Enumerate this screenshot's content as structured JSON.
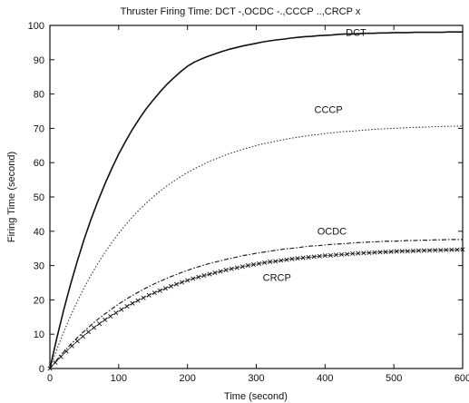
{
  "chart_data": {
    "type": "line",
    "title": "Thruster Firing Time: DCT -,OCDC -.,CCCP ..,CRCP x",
    "xlabel": "Time (second)",
    "ylabel": "Firing Time (second)",
    "xlim": [
      0,
      600
    ],
    "ylim": [
      0,
      100
    ],
    "xticks": [
      "0",
      "100",
      "200",
      "300",
      "400",
      "500",
      "600"
    ],
    "yticks": [
      "0",
      "10",
      "20",
      "30",
      "40",
      "50",
      "60",
      "70",
      "80",
      "90",
      "100"
    ],
    "grid": false,
    "x": [
      0,
      10,
      20,
      30,
      40,
      50,
      60,
      70,
      80,
      90,
      100,
      110,
      120,
      130,
      140,
      150,
      160,
      170,
      180,
      190,
      200,
      210,
      220,
      230,
      240,
      250,
      260,
      270,
      280,
      290,
      300,
      310,
      320,
      330,
      340,
      350,
      360,
      370,
      380,
      390,
      400,
      410,
      420,
      430,
      440,
      450,
      460,
      470,
      480,
      490,
      500,
      510,
      520,
      530,
      540,
      550,
      560,
      570,
      580,
      590,
      600
    ],
    "series": [
      {
        "name": "DCT",
        "values": [
          0.0,
          8.8,
          17.0,
          24.5,
          31.4,
          37.8,
          43.6,
          48.9,
          53.8,
          58.3,
          62.5,
          66.2,
          69.7,
          72.8,
          75.7,
          78.2,
          80.6,
          82.8,
          84.7,
          86.5,
          88.1,
          89.3,
          90.2,
          91.0,
          91.7,
          92.4,
          93.0,
          93.5,
          94.0,
          94.4,
          94.8,
          95.2,
          95.5,
          95.8,
          96.0,
          96.3,
          96.5,
          96.7,
          96.8,
          97.0,
          97.1,
          97.2,
          97.4,
          97.5,
          97.5,
          97.6,
          97.7,
          97.7,
          97.8,
          97.8,
          97.9,
          97.9,
          97.9,
          98.0,
          98.0,
          98.0,
          98.0,
          98.0,
          98.1,
          98.1,
          98.1
        ],
        "style": "solid",
        "color": "#111111"
      },
      {
        "name": "CCCP",
        "values": [
          0.0,
          5.5,
          10.6,
          15.3,
          19.6,
          23.6,
          27.3,
          30.7,
          33.8,
          36.7,
          39.4,
          41.9,
          44.2,
          46.3,
          48.2,
          50.0,
          51.7,
          53.2,
          54.6,
          55.9,
          57.1,
          58.2,
          59.2,
          60.2,
          61.0,
          61.8,
          62.6,
          63.2,
          63.9,
          64.4,
          65.0,
          65.5,
          65.9,
          66.3,
          66.7,
          67.1,
          67.4,
          67.7,
          68.0,
          68.2,
          68.5,
          68.7,
          68.9,
          69.1,
          69.2,
          69.4,
          69.5,
          69.7,
          69.8,
          69.9,
          70.0,
          70.1,
          70.2,
          70.3,
          70.3,
          70.4,
          70.5,
          70.5,
          70.6,
          70.6,
          70.7
        ],
        "style": "dotted",
        "color": "#333333"
      },
      {
        "name": "OCDC",
        "values": [
          0.0,
          2.5,
          4.8,
          7.0,
          9.0,
          10.9,
          12.7,
          14.4,
          15.9,
          17.4,
          18.8,
          20.1,
          21.3,
          22.4,
          23.5,
          24.5,
          25.4,
          26.3,
          27.1,
          27.9,
          28.6,
          29.3,
          29.9,
          30.5,
          31.0,
          31.5,
          32.0,
          32.4,
          32.9,
          33.2,
          33.6,
          33.9,
          34.2,
          34.5,
          34.8,
          35.0,
          35.2,
          35.5,
          35.7,
          35.8,
          36.0,
          36.2,
          36.3,
          36.4,
          36.6,
          36.7,
          36.8,
          36.9,
          37.0,
          37.1,
          37.1,
          37.2,
          37.3,
          37.3,
          37.4,
          37.4,
          37.5,
          37.5,
          37.6,
          37.6,
          37.6
        ],
        "style": "dashdot",
        "color": "#222222"
      },
      {
        "name": "CRCP",
        "values": [
          0.0,
          2.2,
          4.2,
          6.2,
          8.0,
          9.7,
          11.3,
          12.8,
          14.2,
          15.5,
          16.7,
          17.9,
          19.0,
          20.0,
          21.0,
          21.9,
          22.7,
          23.5,
          24.3,
          25.0,
          25.7,
          26.3,
          26.9,
          27.4,
          27.9,
          28.4,
          28.9,
          29.3,
          29.7,
          30.1,
          30.4,
          30.8,
          31.1,
          31.3,
          31.6,
          31.9,
          32.1,
          32.3,
          32.5,
          32.7,
          32.9,
          33.0,
          33.2,
          33.3,
          33.5,
          33.6,
          33.7,
          33.8,
          33.9,
          34.0,
          34.1,
          34.2,
          34.2,
          34.3,
          34.4,
          34.4,
          34.5,
          34.5,
          34.6,
          34.6,
          34.7
        ],
        "style": "x-markers",
        "color": "#111111"
      }
    ],
    "annotations": [
      {
        "text": "DCT",
        "x": 445,
        "y": 97
      },
      {
        "text": "CCCP",
        "x": 405,
        "y": 74.5
      },
      {
        "text": "OCDC",
        "x": 410,
        "y": 39
      },
      {
        "text": "CRCP",
        "x": 330,
        "y": 25.5
      }
    ]
  }
}
